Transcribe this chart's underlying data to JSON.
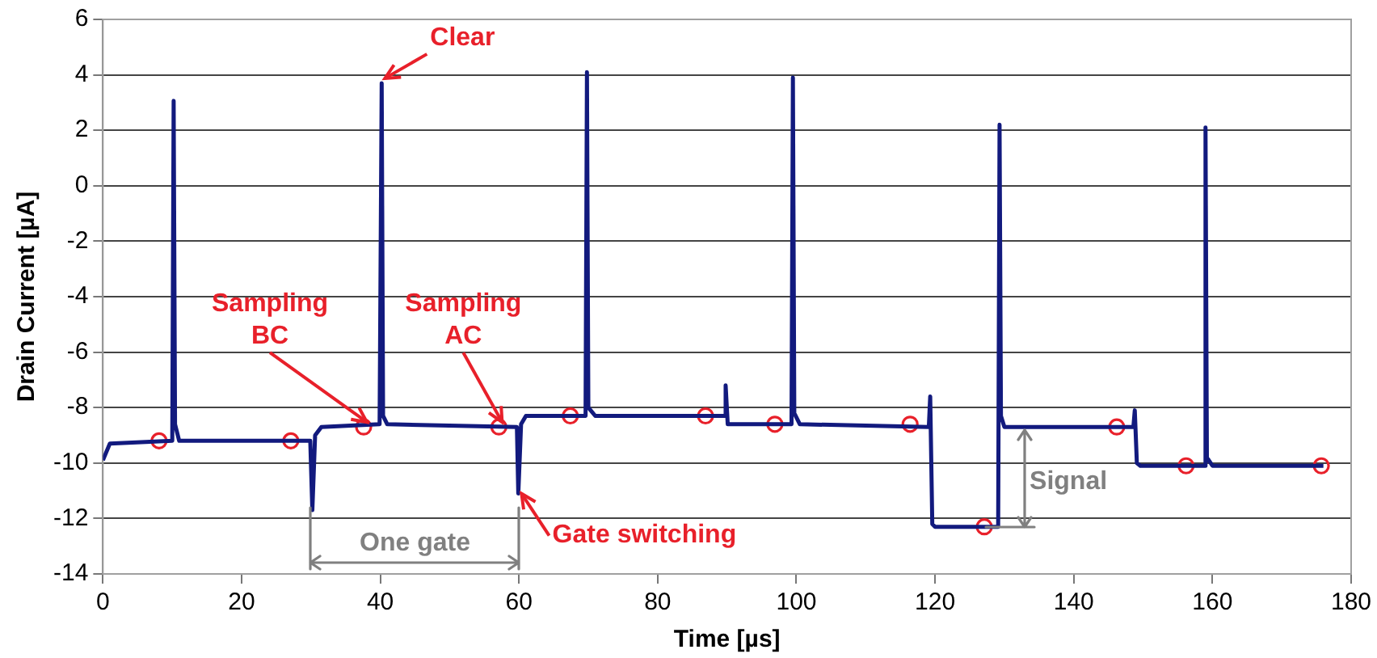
{
  "chart_data": {
    "type": "line",
    "xlabel": "Time [µs]",
    "ylabel": "Drain Current [µA]",
    "xlim": [
      0,
      180
    ],
    "xticks": [
      0,
      20,
      40,
      60,
      80,
      100,
      120,
      140,
      160,
      180
    ],
    "ylim": [
      -14,
      6
    ],
    "yticks": [
      -14,
      -12,
      -10,
      -8,
      -6,
      -4,
      -2,
      0,
      2,
      4,
      6
    ],
    "grid": "y",
    "legend": false,
    "series": [
      {
        "type": "line",
        "marker": "none",
        "color": "#121a7e",
        "x": [
          0,
          1,
          10,
          10.2,
          10.4,
          11,
          29.9,
          30.2,
          30.6,
          31.5,
          39.9,
          40.2,
          40.4,
          41,
          59.7,
          59.9,
          60.3,
          61,
          69.6,
          69.8,
          70,
          71,
          89.6,
          89.8,
          90.1,
          90.8,
          99.3,
          99.5,
          99.7,
          100.5,
          119.1,
          119.3,
          119.6,
          120,
          129.1,
          129.3,
          129.5,
          130,
          148.6,
          148.8,
          149.1,
          149.6,
          158.8,
          159,
          159.2,
          160,
          176
        ],
        "values": [
          -9.9,
          -9.3,
          -9.2,
          3.06,
          -8.6,
          -9.2,
          -9.2,
          -11.7,
          -9,
          -8.7,
          -8.6,
          3.7,
          -8.3,
          -8.6,
          -8.7,
          -11.1,
          -8.6,
          -8.3,
          -8.3,
          4.1,
          -8,
          -8.3,
          -8.3,
          -7.2,
          -8.6,
          -8.6,
          -8.6,
          3.9,
          -8.2,
          -8.6,
          -8.7,
          -7.6,
          -12.2,
          -12.3,
          -12.3,
          2.2,
          -8.3,
          -8.7,
          -8.7,
          -8.1,
          -10,
          -10.1,
          -10.1,
          2.1,
          -9.8,
          -10.1,
          -10.1
        ]
      },
      {
        "type": "scatter",
        "marker": "circle",
        "color": "#e8202a",
        "x": [
          8.1,
          27.1,
          37.6,
          57.1,
          67.4,
          86.9,
          96.9,
          116.4,
          127.1,
          146.2,
          156.2,
          175.7
        ],
        "values": [
          -9.2,
          -9.2,
          -8.7,
          -8.7,
          -8.3,
          -8.3,
          -8.6,
          -8.6,
          -12.3,
          -8.7,
          -10.1,
          -10.1
        ]
      }
    ],
    "annotations": [
      {
        "text": "Clear",
        "x": 40.2,
        "y": 3.7
      },
      {
        "text": "Sampling\nBC",
        "x": 37.6,
        "y": -8.7
      },
      {
        "text": "Sampling\nAC",
        "x": 57.1,
        "y": -8.7
      },
      {
        "text": "Gate switching",
        "x": 59.9,
        "y": -11.1
      },
      "One gate",
      {
        "text": "Signal",
        "x": 127.1,
        "y": -12.3
      }
    ]
  }
}
